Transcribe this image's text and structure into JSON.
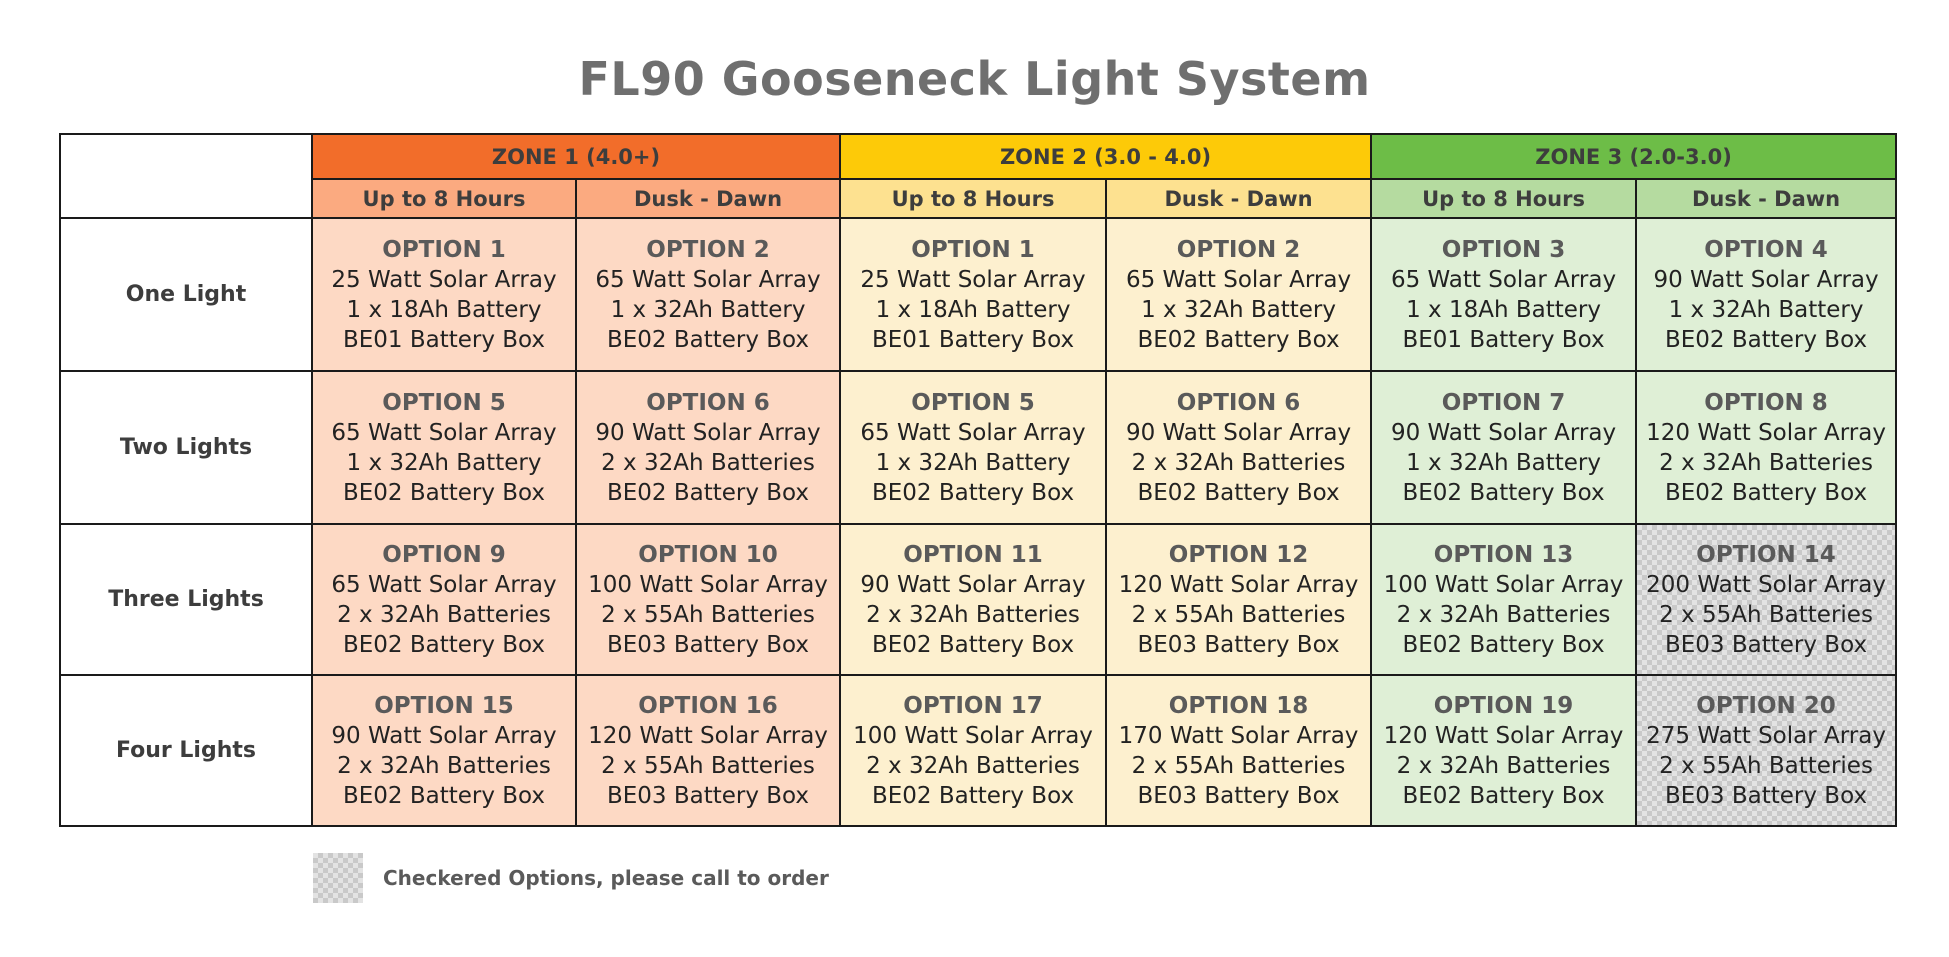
{
  "title": "FL90 Gooseneck Light System",
  "zones": [
    {
      "label": "ZONE 1 (4.0+)",
      "color": "#f26d2a",
      "sub_color": "#fbaa80",
      "cell_color": "#fdd9c4"
    },
    {
      "label": "ZONE 2 (3.0 - 4.0)",
      "color": "#fdca08",
      "sub_color": "#fde190",
      "cell_color": "#fdf0cf"
    },
    {
      "label": "ZONE 3 (2.0-3.0)",
      "color": "#6dbd47",
      "sub_color": "#b5dba0",
      "cell_color": "#dfefd6"
    }
  ],
  "subheaders": [
    "Up to 8 Hours",
    "Dusk - Dawn",
    "Up to 8 Hours",
    "Dusk - Dawn",
    "Up to 8 Hours",
    "Dusk - Dawn"
  ],
  "rows": [
    {
      "label": "One Light",
      "cells": [
        {
          "option": "OPTION 1",
          "array": "25 Watt Solar Array",
          "battery": "1 x 18Ah Battery",
          "box": "BE01 Battery Box"
        },
        {
          "option": "OPTION 2",
          "array": "65 Watt Solar Array",
          "battery": "1 x 32Ah Battery",
          "box": "BE02 Battery Box"
        },
        {
          "option": "OPTION 1",
          "array": "25 Watt Solar Array",
          "battery": "1 x 18Ah Battery",
          "box": "BE01 Battery Box"
        },
        {
          "option": "OPTION 2",
          "array": "65 Watt Solar Array",
          "battery": "1 x 32Ah Battery",
          "box": "BE02 Battery Box"
        },
        {
          "option": "OPTION 3",
          "array": "65 Watt Solar Array",
          "battery": "1 x 18Ah Battery",
          "box": "BE01 Battery Box"
        },
        {
          "option": "OPTION 4",
          "array": "90 Watt Solar Array",
          "battery": "1 x 32Ah Battery",
          "box": "BE02 Battery Box"
        }
      ]
    },
    {
      "label": "Two Lights",
      "cells": [
        {
          "option": "OPTION 5",
          "array": "65 Watt Solar Array",
          "battery": "1 x 32Ah Battery",
          "box": "BE02 Battery Box"
        },
        {
          "option": "OPTION 6",
          "array": "90 Watt Solar Array",
          "battery": "2 x 32Ah Batteries",
          "box": "BE02 Battery Box"
        },
        {
          "option": "OPTION 5",
          "array": "65 Watt Solar Array",
          "battery": "1 x 32Ah Battery",
          "box": "BE02 Battery Box"
        },
        {
          "option": "OPTION 6",
          "array": "90 Watt Solar Array",
          "battery": "2 x 32Ah Batteries",
          "box": "BE02 Battery Box"
        },
        {
          "option": "OPTION 7",
          "array": "90 Watt Solar Array",
          "battery": "1 x 32Ah Battery",
          "box": "BE02 Battery Box"
        },
        {
          "option": "OPTION 8",
          "array": "120 Watt Solar Array",
          "battery": "2 x 32Ah Batteries",
          "box": "BE02 Battery Box"
        }
      ]
    },
    {
      "label": "Three Lights",
      "cells": [
        {
          "option": "OPTION 9",
          "array": "65 Watt Solar Array",
          "battery": "2 x 32Ah Batteries",
          "box": "BE02 Battery Box"
        },
        {
          "option": "OPTION 10",
          "array": "100 Watt Solar Array",
          "battery": "2 x 55Ah Batteries",
          "box": "BE03 Battery Box"
        },
        {
          "option": "OPTION 11",
          "array": "90 Watt Solar Array",
          "battery": "2 x 32Ah Batteries",
          "box": "BE02 Battery Box"
        },
        {
          "option": "OPTION 12",
          "array": "120 Watt Solar Array",
          "battery": "2 x 55Ah Batteries",
          "box": "BE03 Battery Box"
        },
        {
          "option": "OPTION 13",
          "array": "100 Watt Solar Array",
          "battery": "2 x 32Ah Batteries",
          "box": "BE02 Battery Box"
        },
        {
          "option": "OPTION 14",
          "array": "200 Watt Solar Array",
          "battery": "2 x 55Ah Batteries",
          "box": "BE03 Battery Box",
          "checkered": true
        }
      ]
    },
    {
      "label": "Four Lights",
      "cells": [
        {
          "option": "OPTION 15",
          "array": "90 Watt Solar Array",
          "battery": "2 x 32Ah Batteries",
          "box": "BE02 Battery Box"
        },
        {
          "option": "OPTION 16",
          "array": "120 Watt Solar Array",
          "battery": "2 x 55Ah Batteries",
          "box": "BE03 Battery Box"
        },
        {
          "option": "OPTION 17",
          "array": "100 Watt Solar Array",
          "battery": "2 x 32Ah Batteries",
          "box": "BE02 Battery Box"
        },
        {
          "option": "OPTION 18",
          "array": "170 Watt Solar Array",
          "battery": "2 x 55Ah Batteries",
          "box": "BE03 Battery Box"
        },
        {
          "option": "OPTION 19",
          "array": "120 Watt Solar Array",
          "battery": "2 x 32Ah Batteries",
          "box": "BE02 Battery Box"
        },
        {
          "option": "OPTION 20",
          "array": "275 Watt Solar Array",
          "battery": "2 x 55Ah Batteries",
          "box": "BE03 Battery Box",
          "checkered": true
        }
      ]
    }
  ],
  "legend": {
    "text": "Checkered Options, please call to order"
  }
}
